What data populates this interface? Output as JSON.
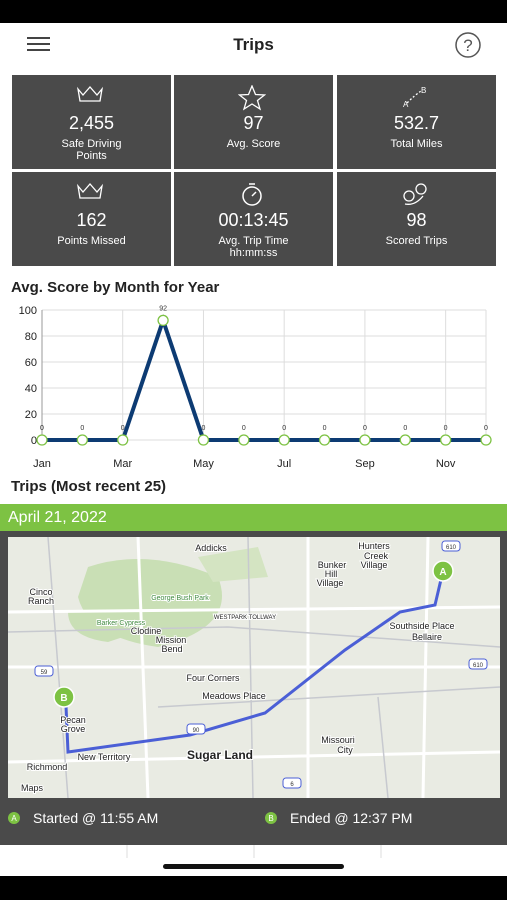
{
  "header": {
    "title": "Trips"
  },
  "stats": [
    {
      "value": "2,455",
      "label": [
        "Safe Driving",
        "Points"
      ]
    },
    {
      "value": "97",
      "label": [
        "Avg. Score"
      ]
    },
    {
      "value": "532.7",
      "label": [
        "Total Miles"
      ]
    },
    {
      "value": "162",
      "label": [
        "Points Missed"
      ]
    },
    {
      "value": "00:13:45",
      "label": [
        "Avg. Trip Time",
        "hh:mm:ss"
      ]
    },
    {
      "value": "98",
      "label": [
        "Scored Trips"
      ]
    }
  ],
  "chart_data": {
    "type": "line",
    "title": "Avg. Score by Month for Year",
    "categories": [
      "Jan",
      null,
      "Mar",
      null,
      "May",
      null,
      "Jul",
      null,
      "Sep",
      null,
      "Nov",
      null
    ],
    "series": [
      {
        "name": "Avg. Score",
        "color": "#0d3b73",
        "values": [
          0,
          0,
          0,
          92,
          0,
          0,
          0,
          0,
          0,
          0,
          0,
          0
        ]
      }
    ],
    "ylim": [
      0,
      100
    ],
    "yticks": [
      0,
      20,
      40,
      60,
      80,
      100
    ],
    "grid": true,
    "marker_color": "#7dc243"
  },
  "trips": {
    "heading": "Trips (Most recent 25)",
    "date": "April 21, 2022",
    "started": "Started @ 11:55 AM",
    "ended": "Ended @ 12:37 PM"
  },
  "map": {
    "markers": [
      "A",
      "B"
    ],
    "labels": [
      "Addicks",
      "Hunters",
      "Creek",
      "Village",
      "Bunker",
      "Hill",
      "Village",
      "Cinco",
      "Ranch",
      "George Bush Park",
      "Barker Cypress",
      "Clodine",
      "Mission",
      "Bend",
      "WESTPARK TOLLWAY",
      "Southside Place",
      "Bellaire",
      "Four Corners",
      "Meadows Place",
      "Pecan",
      "Grove",
      "New Territory",
      "Sugar Land",
      "Missouri",
      "City",
      "Richmond",
      "Maps"
    ],
    "shields": [
      "610",
      "610",
      "59",
      "90",
      "6"
    ]
  }
}
